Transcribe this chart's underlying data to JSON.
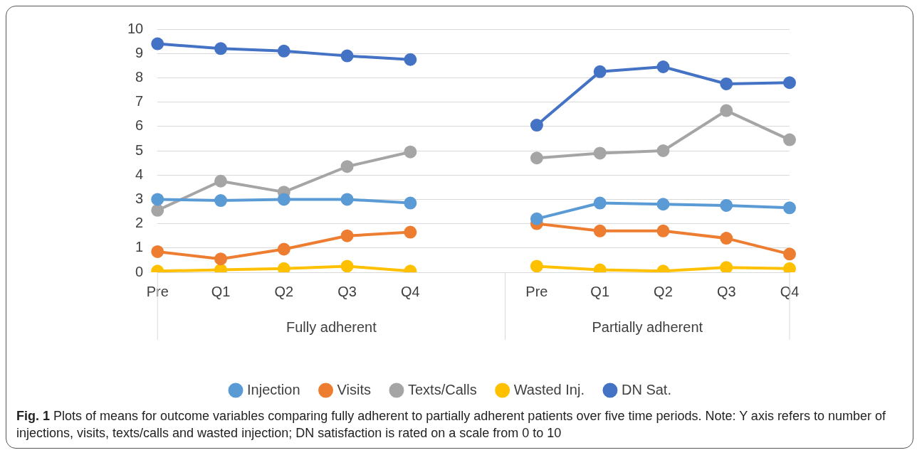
{
  "chart_data": {
    "type": "line",
    "categories": [
      "Pre",
      "Q1",
      "Q2",
      "Q3",
      "Q4",
      null,
      "Pre",
      "Q1",
      "Q2",
      "Q3",
      "Q4"
    ],
    "series": [
      {
        "name": "Injection",
        "color": "#5b9bd5",
        "values": [
          3.0,
          2.95,
          3.0,
          3.0,
          2.85,
          null,
          2.2,
          2.85,
          2.8,
          2.75,
          2.65
        ]
      },
      {
        "name": "Visits",
        "color": "#ed7d31",
        "values": [
          0.85,
          0.55,
          0.95,
          1.5,
          1.65,
          null,
          2.0,
          1.7,
          1.7,
          1.4,
          0.75
        ]
      },
      {
        "name": "Texts/Calls",
        "color": "#a5a5a5",
        "values": [
          2.55,
          3.75,
          3.3,
          4.35,
          4.95,
          null,
          4.7,
          4.9,
          5.0,
          6.65,
          5.45
        ]
      },
      {
        "name": "Wasted Inj.",
        "color": "#ffc000",
        "values": [
          0.05,
          0.1,
          0.15,
          0.25,
          0.05,
          null,
          0.25,
          0.1,
          0.05,
          0.2,
          0.15
        ]
      },
      {
        "name": "DN Sat.",
        "color": "#4472c4",
        "values": [
          9.4,
          9.2,
          9.1,
          8.9,
          8.75,
          null,
          6.05,
          8.25,
          8.45,
          7.75,
          7.8
        ]
      }
    ],
    "ylim": [
      0,
      10
    ],
    "yticks": [
      0,
      1,
      2,
      3,
      4,
      5,
      6,
      7,
      8,
      9,
      10
    ],
    "grid": "y",
    "legend": "bottom",
    "marker": "circle",
    "line_style": "solid",
    "annotations": [
      "Fully adherent",
      "Partially adherent",
      "Fig. 1 Plots of means for outcome variables comparing fully adherent to partially adherent patients over five time periods. Note: Y axis refers to number of injections, visits, texts/calls and wasted injection; DN satisfaction is rated on a scale from 0 to 10"
    ]
  }
}
